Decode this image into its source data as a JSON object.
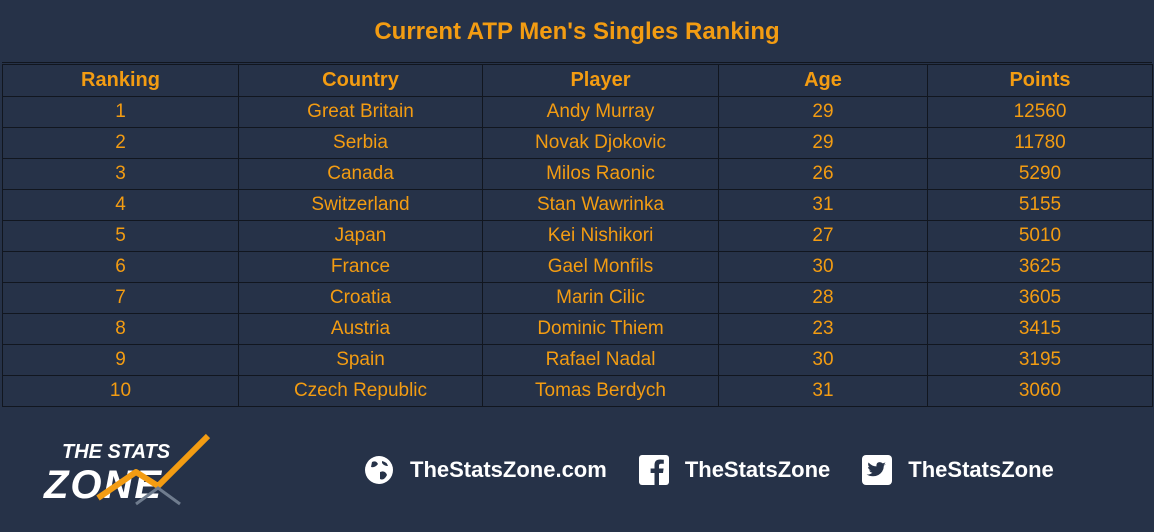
{
  "chart_data": {
    "type": "table",
    "title": "Current ATP Men's Singles Ranking",
    "columns": [
      "Ranking",
      "Country",
      "Player",
      "Age",
      "Points"
    ],
    "rows": [
      [
        "1",
        "Great Britain",
        "Andy Murray",
        "29",
        "12560"
      ],
      [
        "2",
        "Serbia",
        "Novak Djokovic",
        "29",
        "11780"
      ],
      [
        "3",
        "Canada",
        "Milos Raonic",
        "26",
        "5290"
      ],
      [
        "4",
        "Switzerland",
        "Stan Wawrinka",
        "31",
        "5155"
      ],
      [
        "5",
        "Japan",
        "Kei Nishikori",
        "27",
        "5010"
      ],
      [
        "6",
        "France",
        "Gael Monfils",
        "30",
        "3625"
      ],
      [
        "7",
        "Croatia",
        "Marin Cilic",
        "28",
        "3605"
      ],
      [
        "8",
        "Austria",
        "Dominic Thiem",
        "23",
        "3415"
      ],
      [
        "9",
        "Spain",
        "Rafael Nadal",
        "30",
        "3195"
      ],
      [
        "10",
        "Czech Republic",
        "Tomas Berdych",
        "31",
        "3060"
      ]
    ]
  },
  "colors": {
    "background": "#263248",
    "accent": "#f39c12",
    "grid": "#11161f",
    "footer_text": "#ffffff"
  },
  "footer": {
    "logo": {
      "line1": "THE STATS",
      "line2": "ZONE"
    },
    "links": [
      {
        "icon": "globe-icon",
        "label": "TheStatsZone.com"
      },
      {
        "icon": "facebook-icon",
        "label": "TheStatsZone"
      },
      {
        "icon": "twitter-icon",
        "label": "TheStatsZone"
      }
    ]
  }
}
